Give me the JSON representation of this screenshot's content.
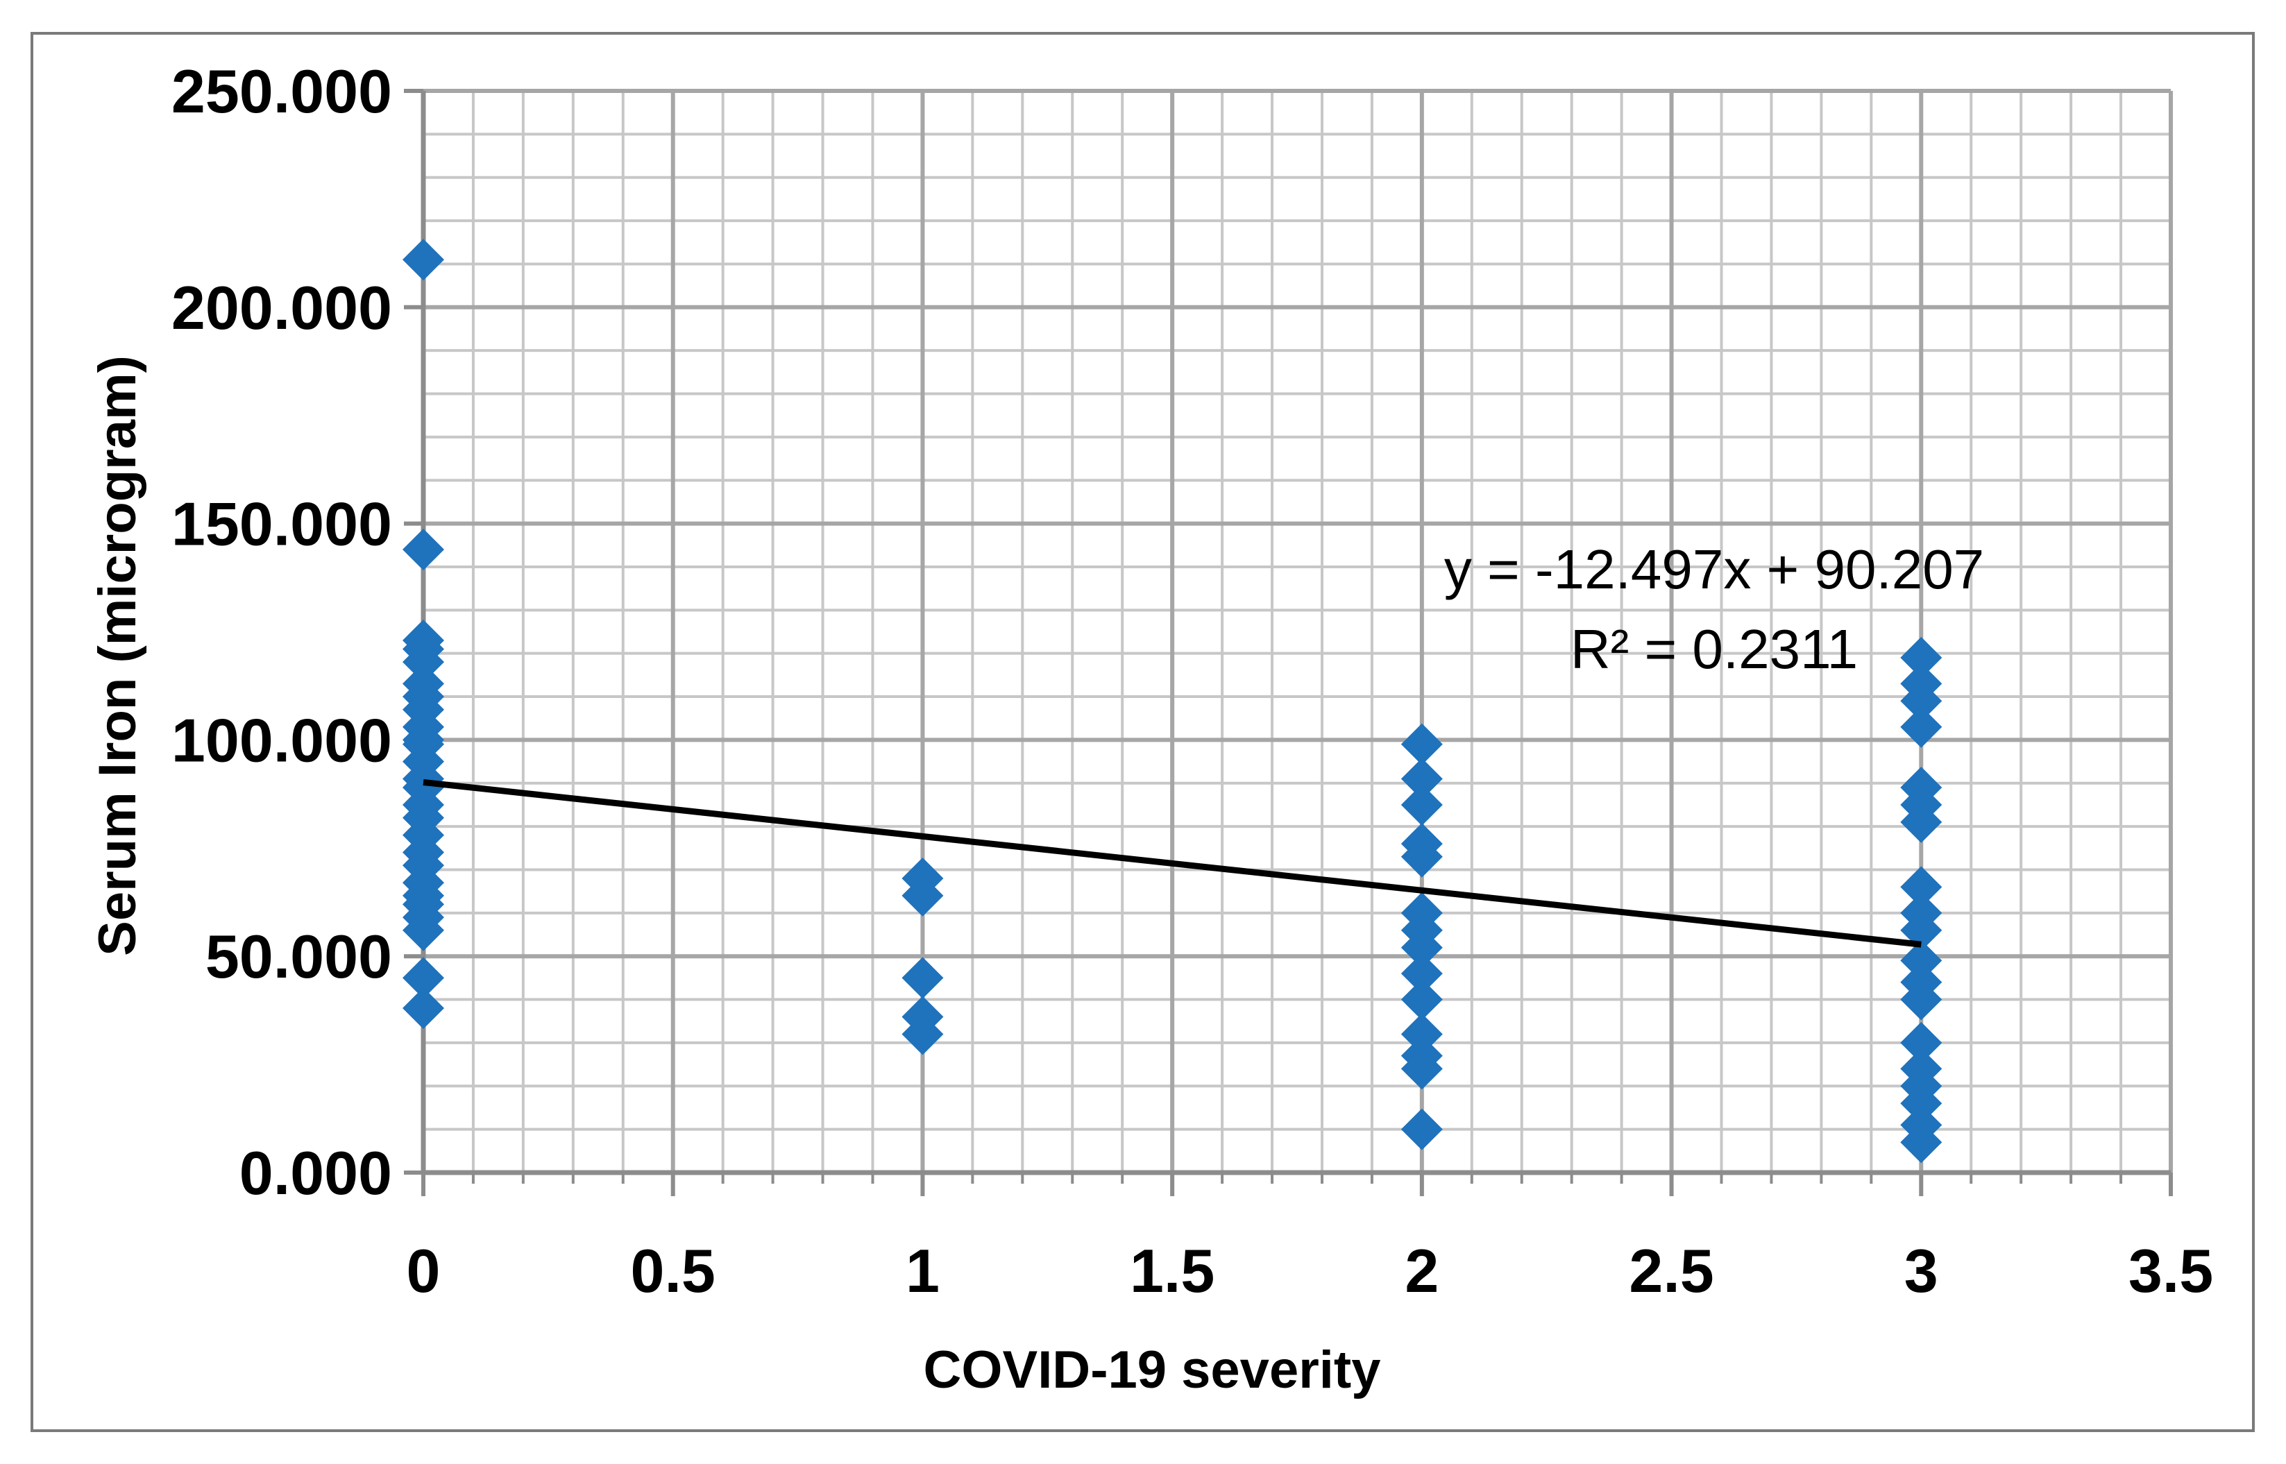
{
  "figure": {
    "background": "#FFFFFF",
    "border_color": "#7A7A7A"
  },
  "chart_data": {
    "type": "scatter",
    "title": "",
    "xlabel": "COVID-19 severity",
    "ylabel": "Serum Iron (microgram)",
    "xlim": [
      0,
      3.5
    ],
    "ylim": [
      0,
      250
    ],
    "grid": "both",
    "legend_position": "none",
    "x_major_step": 0.5,
    "x_minor_step": 0.1,
    "y_major_step": 50,
    "y_minor_step": 10,
    "x_tick_labels": [
      "0",
      "0.5",
      "1",
      "1.5",
      "2",
      "2.5",
      "3",
      "3.5"
    ],
    "y_tick_labels": [
      "0.000",
      "50.000",
      "100.000",
      "150.000",
      "200.000",
      "250.000"
    ],
    "marker": "diamond",
    "marker_color": "#1F72BC",
    "colors": {
      "minor_grid": "#C7C7C7",
      "major_grid": "#A6A6A6",
      "axis": "#8C8C8C",
      "trendline": "#000000"
    },
    "series": [
      {
        "name": "Serum Iron",
        "points": [
          [
            0,
            211
          ],
          [
            0,
            144
          ],
          [
            0,
            123
          ],
          [
            0,
            121
          ],
          [
            0,
            118
          ],
          [
            0,
            113
          ],
          [
            0,
            110
          ],
          [
            0,
            107
          ],
          [
            0,
            103
          ],
          [
            0,
            100
          ],
          [
            0,
            99
          ],
          [
            0,
            95
          ],
          [
            0,
            91
          ],
          [
            0,
            89
          ],
          [
            0,
            85
          ],
          [
            0,
            82
          ],
          [
            0,
            78
          ],
          [
            0,
            74
          ],
          [
            0,
            71
          ],
          [
            0,
            67
          ],
          [
            0,
            64
          ],
          [
            0,
            62
          ],
          [
            0,
            59
          ],
          [
            0,
            56
          ],
          [
            0,
            45
          ],
          [
            0,
            38
          ],
          [
            1,
            68
          ],
          [
            1,
            64
          ],
          [
            1,
            45
          ],
          [
            1,
            36
          ],
          [
            1,
            32
          ],
          [
            2,
            99
          ],
          [
            2,
            91
          ],
          [
            2,
            85
          ],
          [
            2,
            76
          ],
          [
            2,
            73
          ],
          [
            2,
            60
          ],
          [
            2,
            56
          ],
          [
            2,
            52
          ],
          [
            2,
            46
          ],
          [
            2,
            40
          ],
          [
            2,
            32
          ],
          [
            2,
            27
          ],
          [
            2,
            24
          ],
          [
            2,
            10
          ],
          [
            3,
            119
          ],
          [
            3,
            113
          ],
          [
            3,
            109
          ],
          [
            3,
            103
          ],
          [
            3,
            89
          ],
          [
            3,
            85
          ],
          [
            3,
            81
          ],
          [
            3,
            66
          ],
          [
            3,
            60
          ],
          [
            3,
            56
          ],
          [
            3,
            49
          ],
          [
            3,
            44
          ],
          [
            3,
            40
          ],
          [
            3,
            30
          ],
          [
            3,
            24
          ],
          [
            3,
            20
          ],
          [
            3,
            16
          ],
          [
            3,
            11
          ],
          [
            3,
            7
          ]
        ]
      }
    ],
    "trendline": {
      "slope": -12.497,
      "intercept": 90.207,
      "x_start": 0,
      "x_end": 3,
      "equation": "y = -12.497x + 90.207",
      "r_squared": "R² = 0.2311"
    }
  }
}
